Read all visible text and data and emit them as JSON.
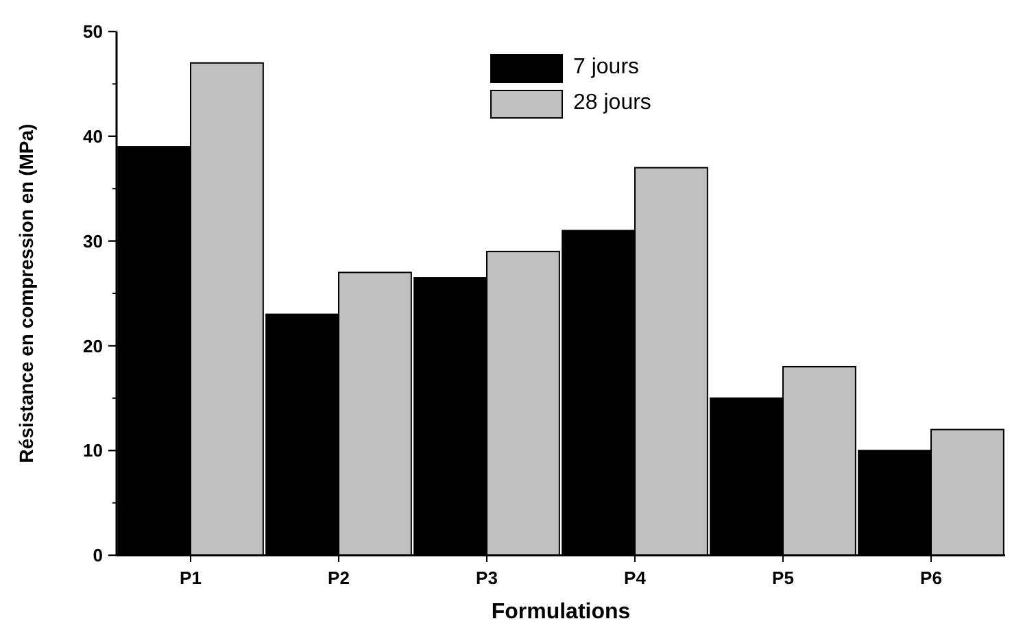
{
  "chart_data": {
    "type": "bar",
    "xlabel": "Formulations",
    "ylabel": "Résistance en compression en (MPa)",
    "categories": [
      "P1",
      "P2",
      "P3",
      "P4",
      "P5",
      "P6"
    ],
    "series": [
      {
        "name": "7 jours",
        "color": "#000000",
        "values": [
          39,
          23,
          26.5,
          31,
          15,
          10
        ]
      },
      {
        "name": "28 jours",
        "color": "#c0c0c0",
        "values": [
          47,
          27,
          29,
          37,
          18,
          12
        ]
      }
    ],
    "ylim": [
      0,
      50
    ],
    "yticks": [
      0,
      10,
      20,
      30,
      40,
      50
    ],
    "grid": false,
    "legend": "top"
  }
}
